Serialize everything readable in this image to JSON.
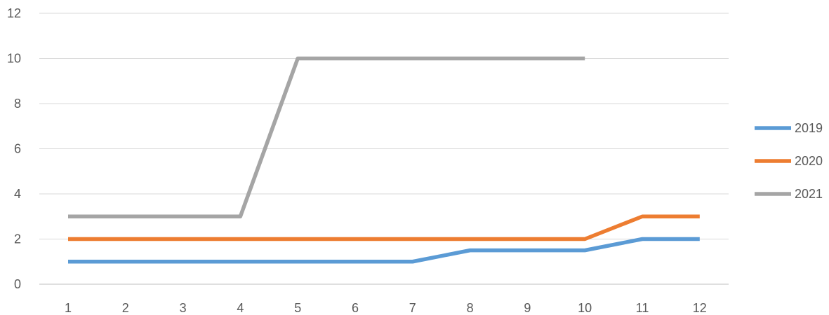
{
  "chart_data": {
    "type": "line",
    "categories": [
      "1",
      "2",
      "3",
      "4",
      "5",
      "6",
      "7",
      "8",
      "9",
      "10",
      "11",
      "12"
    ],
    "series": [
      {
        "name": "2019",
        "color": "#5b9bd5",
        "values": [
          1,
          1,
          1,
          1,
          1,
          1,
          1,
          1.5,
          1.5,
          1.5,
          2,
          2
        ]
      },
      {
        "name": "2020",
        "color": "#ed7d31",
        "values": [
          2,
          2,
          2,
          2,
          2,
          2,
          2,
          2,
          2,
          2,
          3,
          3
        ]
      },
      {
        "name": "2021",
        "color": "#a5a5a5",
        "values": [
          3,
          3,
          3,
          3,
          10,
          10,
          10,
          10,
          10,
          10,
          null,
          null
        ]
      }
    ],
    "yticks": [
      "0",
      "2",
      "4",
      "6",
      "8",
      "10",
      "12"
    ],
    "ylim": [
      0,
      12
    ],
    "grid": true,
    "legend_position": "right",
    "title": "",
    "xlabel": "",
    "ylabel": ""
  }
}
